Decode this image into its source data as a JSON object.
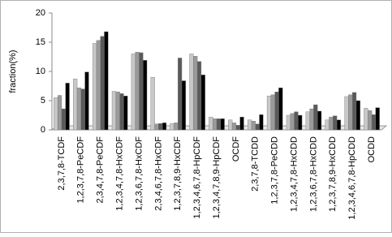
{
  "chart_data": {
    "type": "bar",
    "y_label": "fraction(%)",
    "categories": [
      "2,3,7,8-TCDF",
      "1,2,3,7,8-PeCDF",
      "2,3,4,7,8-PeCDF",
      "1,2,3,4,7,8-HxCDF",
      "1,2,3,6,7,8-HxCDF",
      "2,3,4,6,7,8-HxCDF",
      "1,2,3,7,8,9-HxCDF",
      "1,2,3,4,6,7,8-HpCDF",
      "1,2,3,4,7,8,9-HpCDF",
      "OCDF",
      "2,3,7,8-TCDD",
      "1,2,3,7,8-PeCDD",
      "1,2,3,4,7,8-HxCDD",
      "1,2,3,6,7,8-HxCDD",
      "1,2,3,7,8,9-HxCDD",
      "1,2,3,4,6,7,8-HpCDD",
      "OCDD"
    ],
    "series": [
      {
        "color": "#c8c8c8",
        "values": [
          5.5,
          8.7,
          14.8,
          6.6,
          13.0,
          9.0,
          1.1,
          13.0,
          2.2,
          1.7,
          1.7,
          5.8,
          2.5,
          3.1,
          1.7,
          5.7,
          3.7
        ]
      },
      {
        "color": "#9a9a9a",
        "values": [
          5.9,
          7.2,
          15.3,
          6.5,
          13.3,
          1.0,
          1.2,
          12.6,
          1.9,
          1.2,
          1.5,
          6.0,
          2.8,
          3.6,
          2.2,
          6.0,
          3.3
        ]
      },
      {
        "color": "#5a5a5a",
        "values": [
          3.6,
          7.0,
          16.0,
          6.2,
          13.2,
          1.1,
          12.3,
          11.7,
          1.9,
          0.8,
          1.0,
          6.5,
          3.1,
          4.3,
          2.4,
          6.4,
          2.6
        ]
      },
      {
        "color": "#000000",
        "values": [
          8.0,
          9.9,
          16.8,
          5.8,
          11.9,
          1.2,
          8.4,
          9.4,
          1.9,
          2.2,
          2.6,
          7.2,
          2.5,
          3.2,
          1.7,
          5.0,
          3.8
        ]
      }
    ],
    "ylim": [
      0,
      20
    ],
    "yticks": [
      0,
      5,
      10,
      15,
      20
    ],
    "grid": false
  }
}
